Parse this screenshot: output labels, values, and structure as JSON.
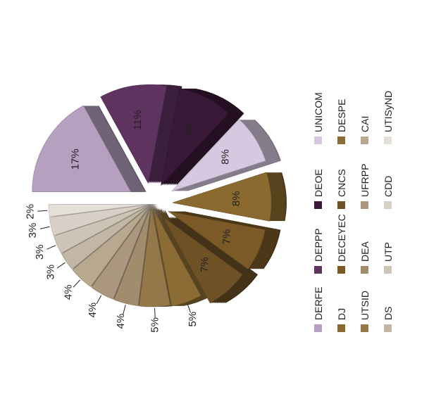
{
  "chart_data": {
    "type": "pie",
    "title": "",
    "legend_placement": "right",
    "series": [
      {
        "name": "DERFE",
        "value": 17,
        "label": "17%",
        "color": "#b79fc0"
      },
      {
        "name": "DEPPP",
        "value": 11,
        "label": "11%",
        "color": "#5e3360"
      },
      {
        "name": "DEOE",
        "value": 9,
        "label": "9%",
        "color": "#3a1838"
      },
      {
        "name": "UNICOM",
        "value": 8,
        "label": "8%",
        "color": "#d6c8e0"
      },
      {
        "name": "DJ",
        "value": 8,
        "label": "8%",
        "color": "#8a6a2e"
      },
      {
        "name": "DECEYEC",
        "value": 7,
        "label": "7%",
        "color": "#7b5a28"
      },
      {
        "name": "CNCS",
        "value": 7,
        "label": "7%",
        "color": "#6e5226"
      },
      {
        "name": "DESPE",
        "value": 5,
        "label": "5%",
        "color": "#8a6c34"
      },
      {
        "name": "UTSID",
        "value": 5,
        "label": "5%",
        "color": "#95784a"
      },
      {
        "name": "DEA",
        "value": 4,
        "label": "4%",
        "color": "#a28c6e"
      },
      {
        "name": "UFRPP",
        "value": 4,
        "label": "4%",
        "color": "#ab977e"
      },
      {
        "name": "CAI",
        "value": 4,
        "label": "4%",
        "color": "#b8a890"
      },
      {
        "name": "DS",
        "value": 3,
        "label": "3%",
        "color": "#c2b6a4"
      },
      {
        "name": "UTP",
        "value": 3,
        "label": "3%",
        "color": "#cec4b6"
      },
      {
        "name": "CDD",
        "value": 3,
        "label": "3%",
        "color": "#d8d0c6"
      },
      {
        "name": "UTISyND",
        "value": 2,
        "label": "2%",
        "color": "#e4dfd8"
      }
    ]
  }
}
